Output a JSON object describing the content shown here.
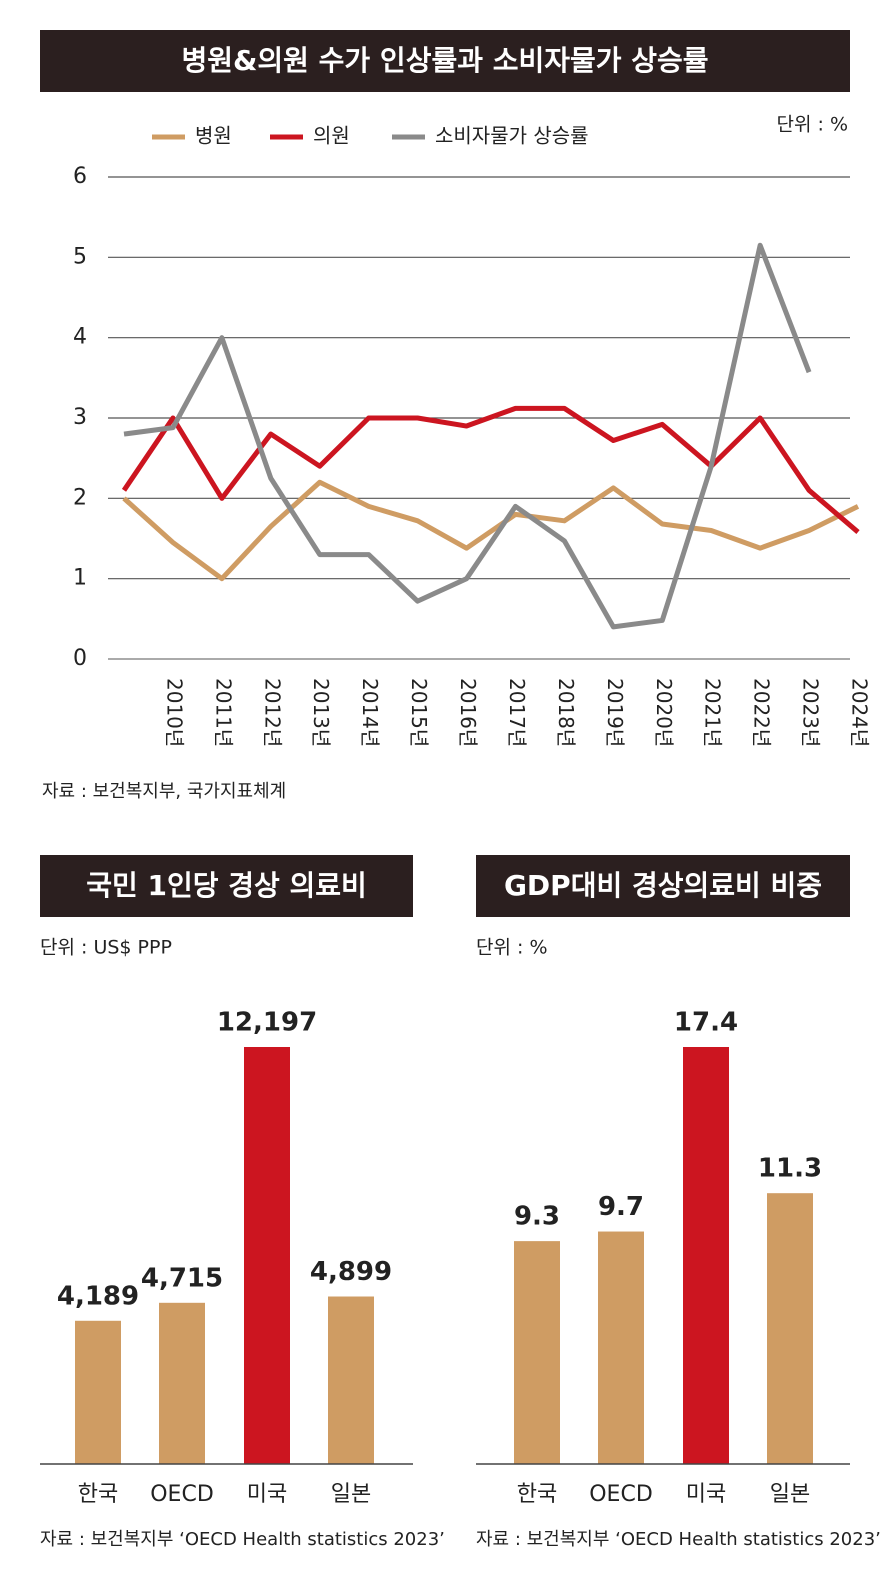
{
  "chart_data": [
    {
      "type": "line",
      "title": "병원&의원 수가 인상률과 소비자물가 상승률",
      "unit": "단위 : %",
      "source": "자료 : 보건복지부, 국가지표체계",
      "categories": [
        null,
        "2010년",
        "2011년",
        "2012년",
        "2013년",
        "2014년",
        "2015년",
        "2016년",
        "2017년",
        "2018년",
        "2019년",
        "2020년",
        "2021년",
        "2022년",
        "2023년",
        "2024년"
      ],
      "series": [
        {
          "name": "병원",
          "color": "#cf9c63",
          "values": [
            2.0,
            1.45,
            1.0,
            1.65,
            2.2,
            1.9,
            1.72,
            1.38,
            1.8,
            1.72,
            2.13,
            1.68,
            1.6,
            1.38,
            1.6,
            1.9
          ]
        },
        {
          "name": "의원",
          "color": "#cc1520",
          "values": [
            2.1,
            3.0,
            2.0,
            2.8,
            2.4,
            3.0,
            3.0,
            2.9,
            3.12,
            3.12,
            2.72,
            2.92,
            2.4,
            3.0,
            2.1,
            1.58
          ]
        },
        {
          "name": "소비자물가 상승률",
          "color": "#8a8a8a",
          "values": [
            2.8,
            2.88,
            4.0,
            2.25,
            1.3,
            1.3,
            0.72,
            1.0,
            1.9,
            1.47,
            0.4,
            0.48,
            2.4,
            5.15,
            3.57,
            null
          ]
        }
      ],
      "ylim": [
        0,
        6
      ],
      "yticks": [
        0,
        1,
        2,
        3,
        4,
        5,
        6
      ],
      "grid": true
    },
    {
      "type": "bar",
      "title": "국민 1인당 경상 의료비",
      "unit": "단위 : US$ PPP",
      "source": "자료 : 보건복지부 ‘OECD Health statistics 2023’",
      "categories": [
        "한국",
        "OECD",
        "미국",
        "일본"
      ],
      "values": [
        4189,
        4715,
        12197,
        4899
      ],
      "value_labels": [
        "4,189",
        "4,715",
        "12,197",
        "4,899"
      ],
      "colors": [
        "#cf9c63",
        "#cf9c63",
        "#cc1520",
        "#cf9c63"
      ]
    },
    {
      "type": "bar",
      "title": "GDP대비 경상의료비 비중",
      "unit": "단위 : %",
      "source": "자료 : 보건복지부 ‘OECD Health statistics 2023’",
      "categories": [
        "한국",
        "OECD",
        "미국",
        "일본"
      ],
      "values": [
        9.3,
        9.7,
        17.4,
        11.3
      ],
      "colors": [
        "#cf9c63",
        "#cf9c63",
        "#cc1520",
        "#cf9c63"
      ]
    }
  ]
}
